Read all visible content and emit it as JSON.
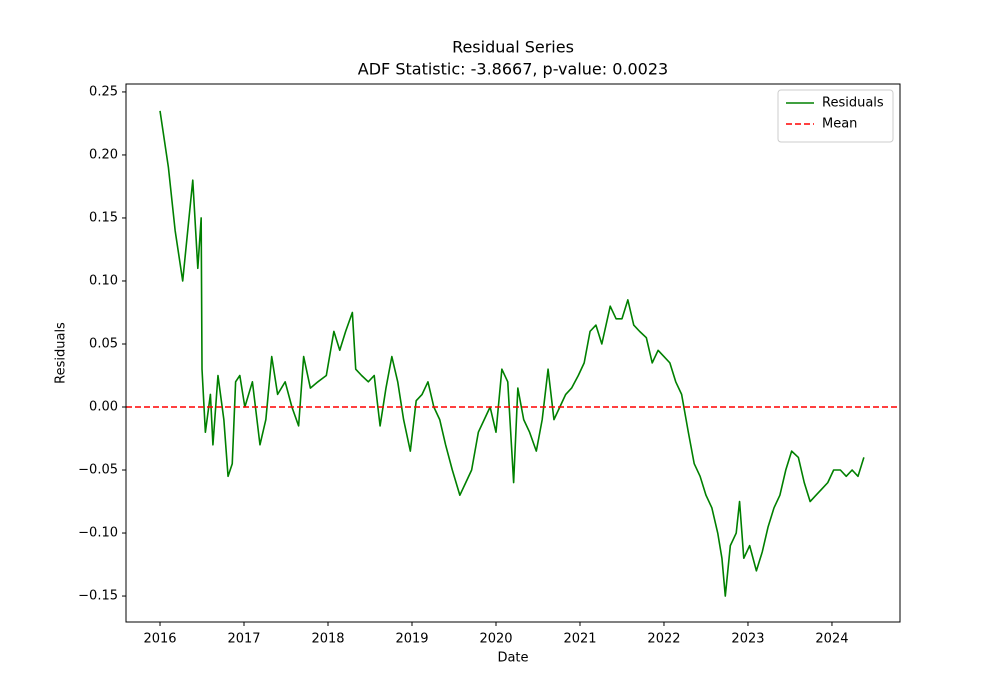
{
  "chart_data": {
    "type": "line",
    "title": "Residual Series",
    "subtitle": "ADF Statistic: -3.8667, p-value: 0.0023",
    "x_label": "Date",
    "y_label": "Residuals",
    "x": [
      2016.0,
      2016.1,
      2016.18,
      2016.27,
      2016.39,
      2016.45,
      2016.49,
      2016.5,
      2016.54,
      2016.6,
      2016.63,
      2016.69,
      2016.76,
      2016.81,
      2016.86,
      2016.9,
      2016.95,
      2017.01,
      2017.1,
      2017.19,
      2017.26,
      2017.33,
      2017.4,
      2017.49,
      2017.57,
      2017.65,
      2017.71,
      2017.79,
      2017.88,
      2017.98,
      2018.07,
      2018.14,
      2018.21,
      2018.29,
      2018.33,
      2018.4,
      2018.48,
      2018.55,
      2018.62,
      2018.69,
      2018.76,
      2018.83,
      2018.9,
      2018.98,
      2019.05,
      2019.12,
      2019.19,
      2019.26,
      2019.33,
      2019.4,
      2019.48,
      2019.57,
      2019.64,
      2019.71,
      2019.79,
      2019.86,
      2019.93,
      2020.0,
      2020.07,
      2020.14,
      2020.21,
      2020.26,
      2020.33,
      2020.4,
      2020.48,
      2020.55,
      2020.62,
      2020.69,
      2020.76,
      2020.83,
      2020.9,
      2020.98,
      2021.05,
      2021.12,
      2021.19,
      2021.26,
      2021.36,
      2021.43,
      2021.5,
      2021.57,
      2021.64,
      2021.71,
      2021.79,
      2021.86,
      2021.93,
      2022.0,
      2022.07,
      2022.14,
      2022.21,
      2022.29,
      2022.36,
      2022.43,
      2022.5,
      2022.57,
      2022.64,
      2022.69,
      2022.73,
      2022.79,
      2022.86,
      2022.9,
      2022.95,
      2023.02,
      2023.1,
      2023.17,
      2023.24,
      2023.31,
      2023.38,
      2023.45,
      2023.52,
      2023.6,
      2023.67,
      2023.74,
      2023.81,
      2023.88,
      2023.95,
      2024.02,
      2024.1,
      2024.17,
      2024.24,
      2024.31,
      2024.38
    ],
    "series": [
      {
        "name": "Residuals",
        "color": "green",
        "values": [
          0.235,
          0.19,
          0.14,
          0.1,
          0.18,
          0.11,
          0.15,
          0.03,
          -0.02,
          0.01,
          -0.03,
          0.025,
          -0.01,
          -0.055,
          -0.045,
          0.02,
          0.025,
          0.0,
          0.02,
          -0.03,
          -0.01,
          0.04,
          0.01,
          0.02,
          0.0,
          -0.015,
          0.04,
          0.015,
          0.02,
          0.025,
          0.06,
          0.045,
          0.06,
          0.075,
          0.03,
          0.025,
          0.02,
          0.025,
          -0.015,
          0.015,
          0.04,
          0.02,
          -0.01,
          -0.035,
          0.005,
          0.01,
          0.02,
          0.0,
          -0.01,
          -0.03,
          -0.05,
          -0.07,
          -0.06,
          -0.05,
          -0.02,
          -0.01,
          0.0,
          -0.02,
          0.03,
          0.02,
          -0.06,
          0.015,
          -0.01,
          -0.02,
          -0.035,
          -0.01,
          0.03,
          -0.01,
          0.0,
          0.01,
          0.015,
          0.025,
          0.035,
          0.06,
          0.065,
          0.05,
          0.08,
          0.07,
          0.07,
          0.085,
          0.065,
          0.06,
          0.055,
          0.035,
          0.045,
          0.04,
          0.035,
          0.02,
          0.01,
          -0.02,
          -0.045,
          -0.055,
          -0.07,
          -0.08,
          -0.1,
          -0.12,
          -0.15,
          -0.11,
          -0.1,
          -0.075,
          -0.12,
          -0.11,
          -0.13,
          -0.115,
          -0.095,
          -0.08,
          -0.07,
          -0.05,
          -0.035,
          -0.04,
          -0.06,
          -0.075,
          -0.07,
          -0.065,
          -0.06,
          -0.05,
          -0.05,
          -0.055,
          -0.05,
          -0.055,
          -0.04
        ]
      }
    ],
    "hlines": [
      {
        "name": "Mean",
        "color": "red",
        "value": 0
      }
    ],
    "xlim": [
      2015.595,
      2024.81
    ],
    "ylim": [
      -0.1706,
      0.2563
    ],
    "xticks": [
      2016,
      2017,
      2018,
      2019,
      2020,
      2021,
      2022,
      2023,
      2024
    ],
    "yticks": [
      {
        "value": -0.15,
        "label": "−0.15"
      },
      {
        "value": -0.1,
        "label": "−0.10"
      },
      {
        "value": -0.05,
        "label": "−0.05"
      },
      {
        "value": 0,
        "label": "0.00"
      },
      {
        "value": 0.05,
        "label": "0.05"
      },
      {
        "value": 0.1,
        "label": "0.10"
      },
      {
        "value": 0.15,
        "label": "0.15"
      },
      {
        "value": 0.2,
        "label": "0.20"
      },
      {
        "value": 0.25,
        "label": "0.25"
      }
    ],
    "legend": "upper right",
    "grid": false
  }
}
